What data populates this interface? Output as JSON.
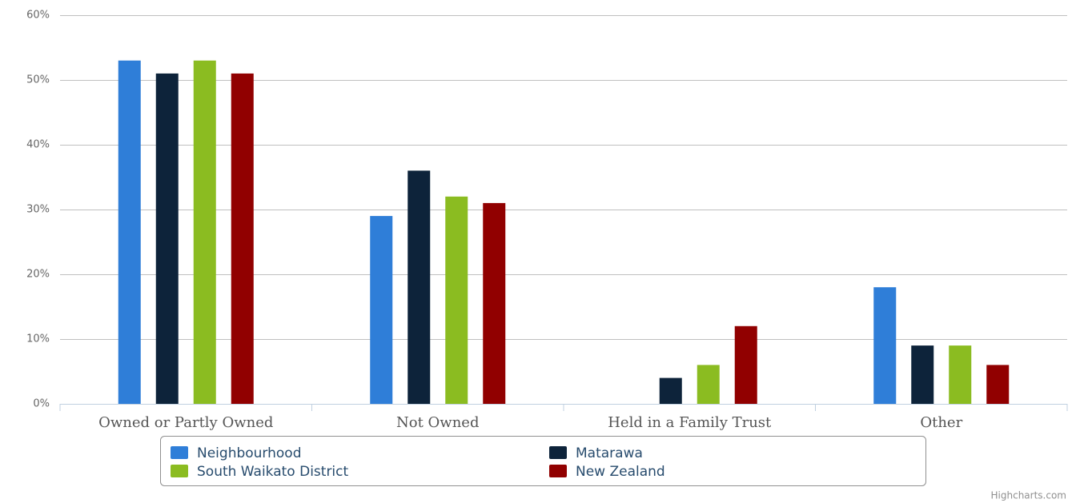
{
  "chart_data": {
    "type": "bar",
    "categories": [
      "Owned or Partly Owned",
      "Not Owned",
      "Held in a Family Trust",
      "Other"
    ],
    "series": [
      {
        "name": "Neighbourhood",
        "color": "#2f7ed8",
        "values": [
          53,
          29,
          0,
          18
        ]
      },
      {
        "name": "Matarawa",
        "color": "#0d233a",
        "values": [
          51,
          36,
          4,
          9
        ]
      },
      {
        "name": "South Waikato District",
        "color": "#8bbc21",
        "values": [
          53,
          32,
          6,
          9
        ]
      },
      {
        "name": "New Zealand",
        "color": "#910000",
        "values": [
          51,
          31,
          12,
          6
        ]
      }
    ],
    "ylim": [
      0,
      60
    ],
    "yticks": [
      {
        "value": 0,
        "label": "0%"
      },
      {
        "value": 10,
        "label": "10%"
      },
      {
        "value": 20,
        "label": "20%"
      },
      {
        "value": 30,
        "label": "30%"
      },
      {
        "value": 40,
        "label": "40%"
      },
      {
        "value": 50,
        "label": "50%"
      },
      {
        "value": 60,
        "label": "60%"
      }
    ],
    "grid": true,
    "legend": "bottom",
    "credits": "Highcharts.com"
  }
}
